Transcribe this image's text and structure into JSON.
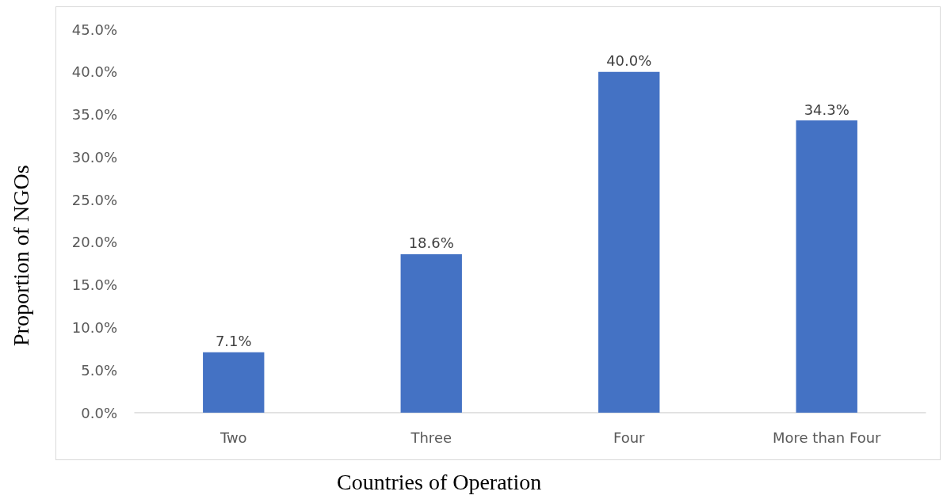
{
  "chart_data": {
    "type": "bar",
    "xlabel": "Countries of Operation",
    "ylabel": "Proportion of NGOs",
    "categories": [
      "Two",
      "Three",
      "Four",
      "More than Four"
    ],
    "values": [
      7.1,
      18.6,
      40.0,
      34.3
    ],
    "value_labels": [
      "7.1%",
      "18.6%",
      "40.0%",
      "34.3%"
    ],
    "color": "#4472c4",
    "ylim": [
      0,
      45
    ],
    "yticks": [
      {
        "value": 0,
        "label": "0.0%"
      },
      {
        "value": 5,
        "label": "5.0%"
      },
      {
        "value": 10,
        "label": "10.0%"
      },
      {
        "value": 15,
        "label": "15.0%"
      },
      {
        "value": 20,
        "label": "20.0%"
      },
      {
        "value": 25,
        "label": "25.0%"
      },
      {
        "value": 30,
        "label": "30.0%"
      },
      {
        "value": 35,
        "label": "35.0%"
      },
      {
        "value": 40,
        "label": "40.0%"
      },
      {
        "value": 45,
        "label": "45.0%"
      }
    ],
    "grid": false
  }
}
